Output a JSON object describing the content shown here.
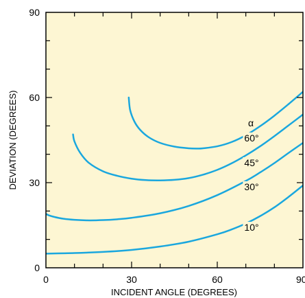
{
  "chart_data": {
    "type": "line",
    "title": "",
    "xlabel": "INCIDENT ANGLE (DEGREES)",
    "ylabel": "DEVIATION (DEGREES)",
    "xlim": [
      0,
      90
    ],
    "ylim": [
      0,
      90
    ],
    "x_ticks": [
      0,
      30,
      60,
      90
    ],
    "y_ticks": [
      0,
      30,
      60,
      90
    ],
    "x_tick_labels": [
      "0",
      "30",
      "60",
      "90"
    ],
    "y_tick_labels": [
      "0",
      "30",
      "60",
      "90"
    ],
    "grid": false,
    "legend_title": "α",
    "colors": {
      "background": "#fdf6d3",
      "series": "#1aa7de",
      "axis": "#000000"
    },
    "series": [
      {
        "name": "10°",
        "x": [
          0,
          10,
          20,
          30,
          40,
          50,
          60,
          65,
          70,
          75,
          80,
          85,
          90
        ],
        "y": [
          5,
          5.2,
          5.6,
          6.3,
          7.5,
          9.2,
          11.8,
          13.5,
          15.6,
          18.2,
          21.3,
          25.0,
          29.0
        ]
      },
      {
        "name": "30°",
        "x": [
          0,
          1,
          3,
          6,
          10,
          15,
          20,
          25,
          30,
          40,
          50,
          60,
          70,
          75,
          80,
          85,
          90
        ],
        "y": [
          19,
          18.5,
          17.9,
          17.3,
          16.9,
          16.7,
          16.8,
          17.1,
          17.6,
          19.2,
          21.8,
          25.6,
          30.6,
          33.6,
          36.9,
          40.5,
          44.0
        ]
      },
      {
        "name": "45°",
        "x": [
          9.5,
          10,
          12,
          15,
          20,
          25,
          30,
          35,
          40,
          45,
          50,
          55,
          60,
          65,
          70,
          75,
          80,
          85,
          90
        ],
        "y": [
          47,
          44.5,
          40.5,
          37.0,
          34.0,
          32.4,
          31.4,
          30.9,
          30.8,
          31.0,
          31.6,
          32.8,
          34.5,
          36.8,
          39.6,
          42.8,
          46.4,
          50.2,
          54.0
        ]
      },
      {
        "name": "60°",
        "x": [
          29,
          29.5,
          31,
          33,
          36,
          40,
          45,
          50,
          53,
          55,
          60,
          65,
          70,
          75,
          80,
          85,
          90
        ],
        "y": [
          60,
          55.5,
          51.5,
          48.6,
          46.0,
          44.0,
          42.7,
          42.1,
          42.0,
          42.1,
          42.8,
          44.3,
          46.7,
          49.9,
          53.6,
          57.7,
          62.0
        ]
      }
    ]
  }
}
